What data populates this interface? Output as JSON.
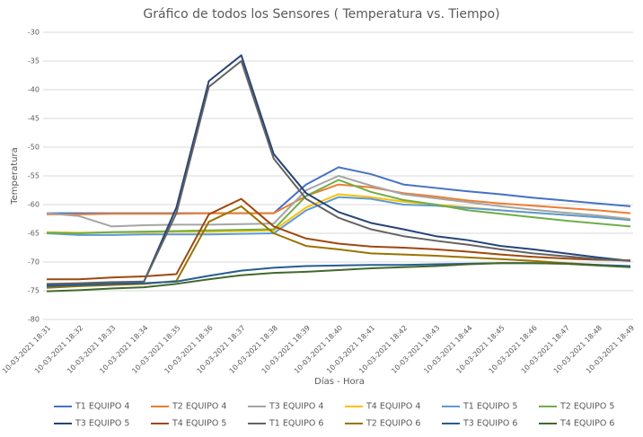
{
  "chart_data": {
    "type": "line",
    "title": "Gráfico de todos los Sensores ( Temperatura vs. Tiempo)",
    "x_label": "Días - Hora",
    "y_label": "Temperatura",
    "categories": [
      "10-03-2021 18:31",
      "10-03-2021 18:32",
      "10-03-2021 18:33",
      "10-03-2021 18:34",
      "10-03-2021 18:35",
      "10-03-2021 18:36",
      "10-03-2021 18:37",
      "10-03-2021 18:38",
      "10-03-2021 18:39",
      "10-03-2021 18:40",
      "10-03-2021 18:41",
      "10-03-2021 18:42",
      "10-03-2021 18:43",
      "10-03-2021 18:44",
      "10-03-2021 18:45",
      "10-03-2021 18:46",
      "10-03-2021 18:47",
      "10-03-2021 18:48",
      "10-03-2021 18:49"
    ],
    "ylim": [
      -80,
      -30
    ],
    "yticks": [
      -80,
      -75,
      -70,
      -65,
      -60,
      -55,
      -50,
      -45,
      -40,
      -35,
      -30
    ],
    "grid": true,
    "legend": "bottom",
    "series": [
      {
        "name": "T1 EQUIPO 4",
        "color": "#4472c4",
        "values": [
          -61.5,
          -61.5,
          -61.5,
          -61.5,
          -61.5,
          -61.5,
          -61.5,
          -61.5,
          -56.5,
          -53.5,
          -54.7,
          -56.5,
          -57.1,
          -57.7,
          -58.2,
          -58.8,
          -59.3,
          -59.8,
          -60.3
        ]
      },
      {
        "name": "T2 EQUIPO 4",
        "color": "#ed7d31",
        "values": [
          -61.7,
          -61.7,
          -61.6,
          -61.6,
          -61.6,
          -61.5,
          -61.5,
          -61.5,
          -58.5,
          -56.5,
          -57,
          -58,
          -58.6,
          -59.3,
          -59.8,
          -60.2,
          -60.6,
          -61,
          -61.5
        ]
      },
      {
        "name": "T3 EQUIPO 4",
        "color": "#a5a5a5",
        "values": [
          -61.5,
          -62,
          -63.8,
          -63.6,
          -63.5,
          -63.5,
          -63.4,
          -63.3,
          -57.5,
          -55,
          -56.7,
          -58.2,
          -58.9,
          -59.6,
          -60.3,
          -60.9,
          -61.4,
          -61.9,
          -62.5
        ]
      },
      {
        "name": "T4 EQUIPO 4",
        "color": "#ffc000",
        "values": [
          -64.8,
          -64.9,
          -64.8,
          -64.8,
          -64.7,
          -64.7,
          -64.6,
          -64.5,
          -60.5,
          -58.2,
          -58.7,
          -59.5,
          -60,
          -60.5,
          -61,
          -61.4,
          -61.8,
          -62.2,
          -62.6
        ]
      },
      {
        "name": "T1 EQUIPO 5",
        "color": "#5b9bd5",
        "values": [
          -65,
          -65.3,
          -65.3,
          -65.2,
          -65.2,
          -65.2,
          -65.1,
          -65,
          -61,
          -58.7,
          -59,
          -60,
          -60.2,
          -60.6,
          -61,
          -61.4,
          -61.8,
          -62.2,
          -62.7
        ]
      },
      {
        "name": "T2 EQUIPO 5",
        "color": "#70ad47",
        "values": [
          -64.9,
          -65,
          -64.8,
          -64.7,
          -64.6,
          -64.5,
          -64.4,
          -64.3,
          -58.5,
          -55.7,
          -57.8,
          -59.2,
          -60,
          -61,
          -61.6,
          -62.2,
          -62.8,
          -63.3,
          -63.8
        ]
      },
      {
        "name": "T3 EQUIPO 5",
        "color": "#264478",
        "values": [
          -74,
          -73.8,
          -73.6,
          -73.4,
          -60.5,
          -38.5,
          -34,
          -51.2,
          -58,
          -61.3,
          -63.2,
          -64.3,
          -65.5,
          -66.2,
          -67.2,
          -67.8,
          -68.5,
          -69.2,
          -69.8
        ]
      },
      {
        "name": "T4 EQUIPO 5",
        "color": "#9e480e",
        "values": [
          -73,
          -73,
          -72.7,
          -72.5,
          -72.1,
          -61.7,
          -59,
          -63.8,
          -65.9,
          -66.8,
          -67.3,
          -67.5,
          -67.8,
          -68.2,
          -68.7,
          -69.1,
          -69.4,
          -69.6,
          -69.7
        ]
      },
      {
        "name": "T1 EQUIPO 6",
        "color": "#636363",
        "values": [
          -73.8,
          -73.7,
          -73.5,
          -73.4,
          -61.5,
          -39.5,
          -35,
          -52,
          -59,
          -62.3,
          -64.3,
          -65.5,
          -66.3,
          -67,
          -67.8,
          -68.5,
          -69,
          -69.5,
          -69.8
        ]
      },
      {
        "name": "T2 EQUIPO 6",
        "color": "#997300",
        "values": [
          -74.5,
          -74.2,
          -74,
          -73.8,
          -73.3,
          -63,
          -60.3,
          -65,
          -67.2,
          -67.8,
          -68.5,
          -68.7,
          -68.9,
          -69.2,
          -69.5,
          -69.8,
          -70.2,
          -70.5,
          -70.8
        ]
      },
      {
        "name": "T3 EQUIPO 6",
        "color": "#255e91",
        "values": [
          -74.2,
          -74,
          -73.8,
          -73.7,
          -73.4,
          -72.4,
          -71.5,
          -71,
          -70.7,
          -70.6,
          -70.5,
          -70.5,
          -70.4,
          -70.3,
          -70.2,
          -70.2,
          -70.3,
          -70.5,
          -70.7
        ]
      },
      {
        "name": "T4 EQUIPO 6",
        "color": "#43682b",
        "values": [
          -75.1,
          -74.9,
          -74.6,
          -74.4,
          -73.8,
          -73,
          -72.3,
          -71.9,
          -71.7,
          -71.4,
          -71.1,
          -70.9,
          -70.7,
          -70.4,
          -70.2,
          -70.2,
          -70.3,
          -70.6,
          -70.9
        ]
      }
    ]
  }
}
